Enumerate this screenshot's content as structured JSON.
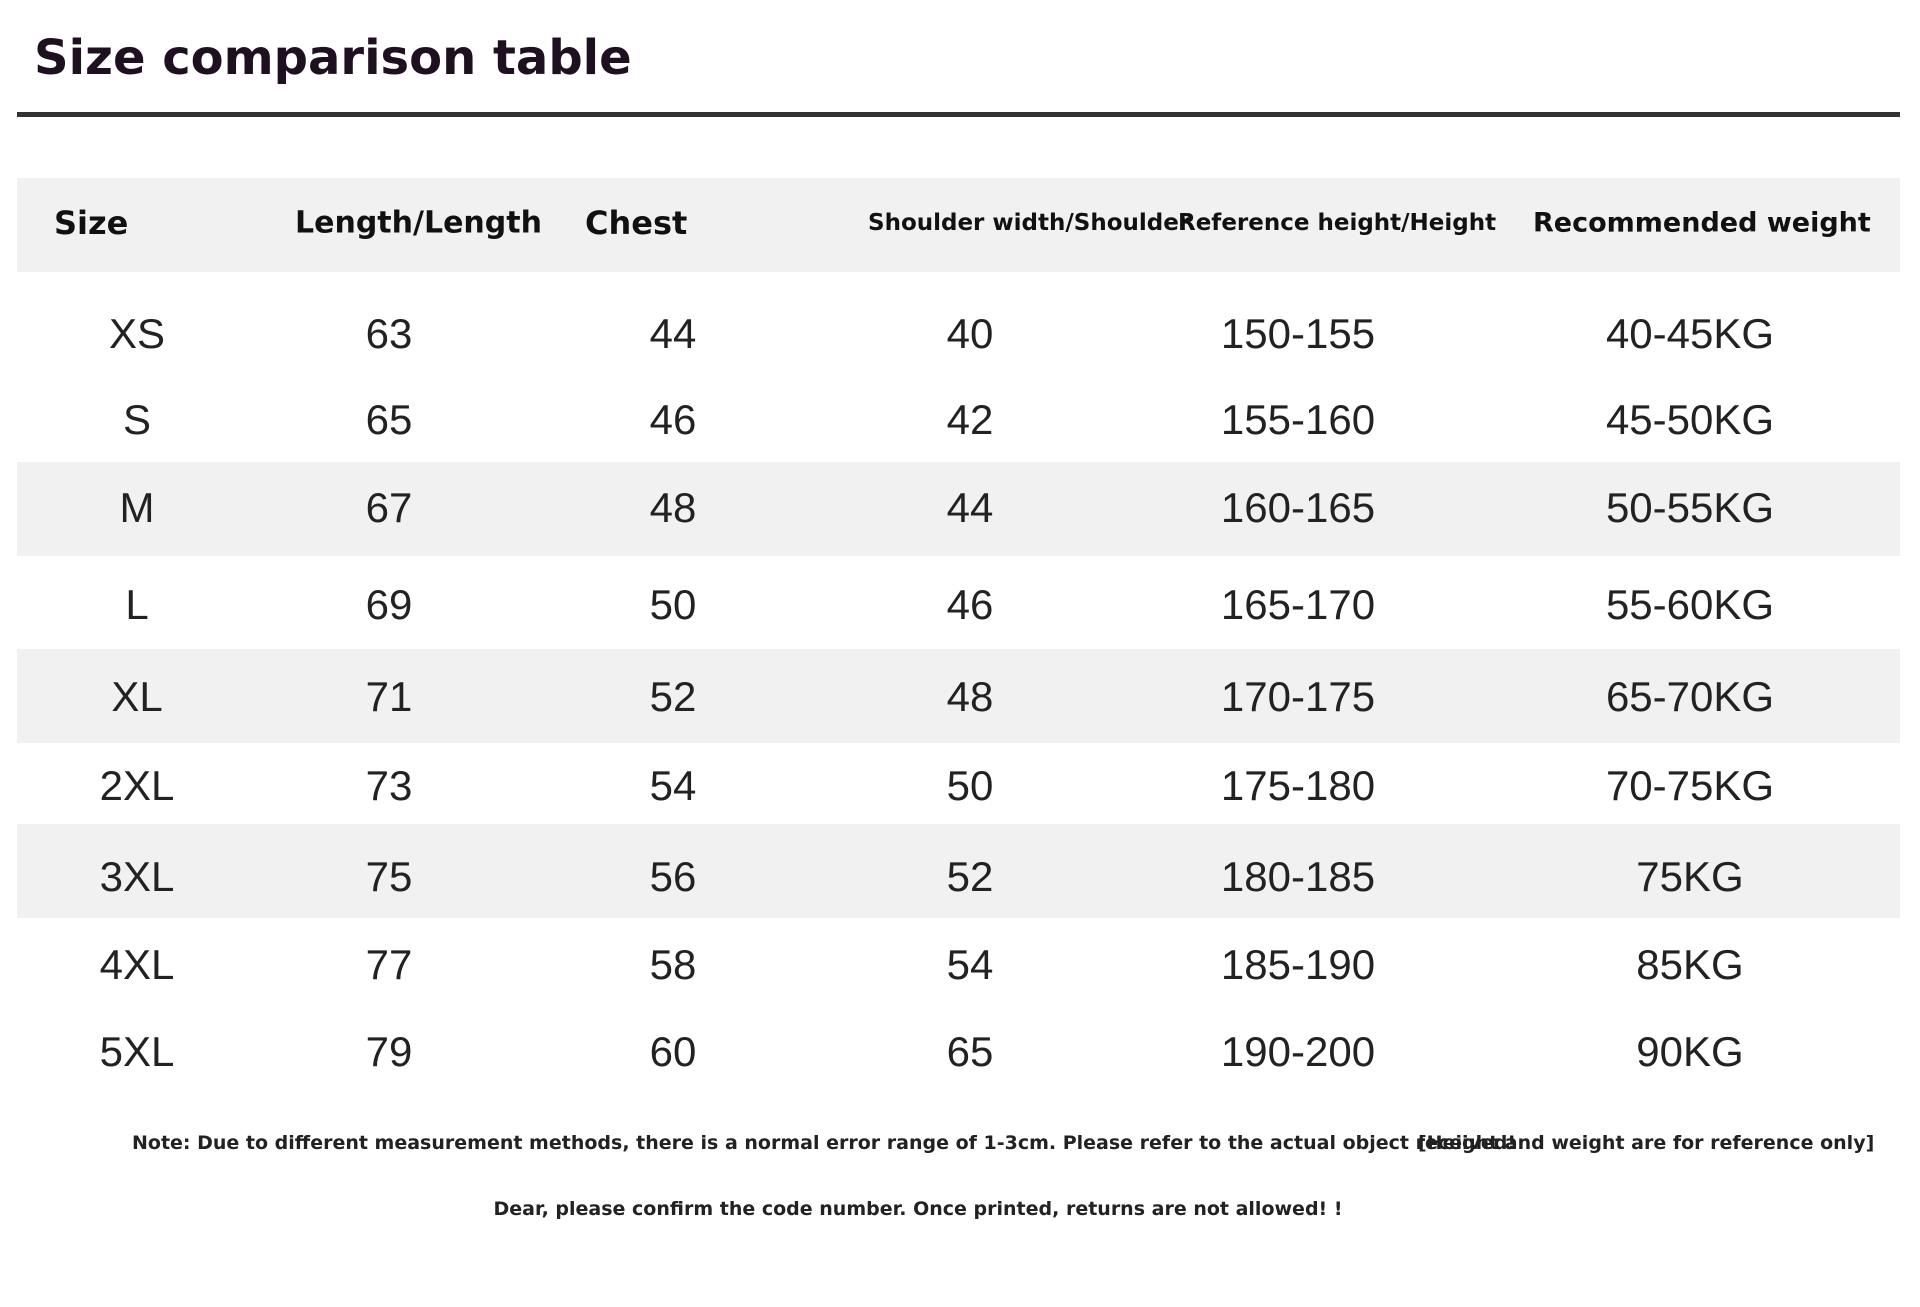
{
  "header": {
    "title": "Size comparison table"
  },
  "table": {
    "columns": [
      "Size",
      "Length/Length",
      "Chest",
      "Shoulder width/Shoulder",
      "Reference height/Height",
      "Recommended weight"
    ],
    "rows": [
      [
        "XS",
        "63",
        "44",
        "40",
        "150-155",
        "40-45KG"
      ],
      [
        "S",
        "65",
        "46",
        "42",
        "155-160",
        "45-50KG"
      ],
      [
        "M",
        "67",
        "48",
        "44",
        "160-165",
        "50-55KG"
      ],
      [
        "L",
        "69",
        "50",
        "46",
        "165-170",
        "55-60KG"
      ],
      [
        "XL",
        "71",
        "52",
        "48",
        "170-175",
        "65-70KG"
      ],
      [
        "2XL",
        "73",
        "54",
        "50",
        "175-180",
        "70-75KG"
      ],
      [
        "3XL",
        "75",
        "56",
        "52",
        "180-185",
        "75KG"
      ],
      [
        "4XL",
        "77",
        "58",
        "54",
        "185-190",
        "85KG"
      ],
      [
        "5XL",
        "79",
        "60",
        "65",
        "190-200",
        "90KG"
      ]
    ]
  },
  "notes": {
    "measurement": "Note: Due to different measurement methods, there is a normal error range of 1-3cm. Please refer to the actual object received!",
    "reference": "[Height and weight are for reference only]",
    "confirm": "Dear, please confirm the code number. Once printed, returns are not allowed! !"
  }
}
